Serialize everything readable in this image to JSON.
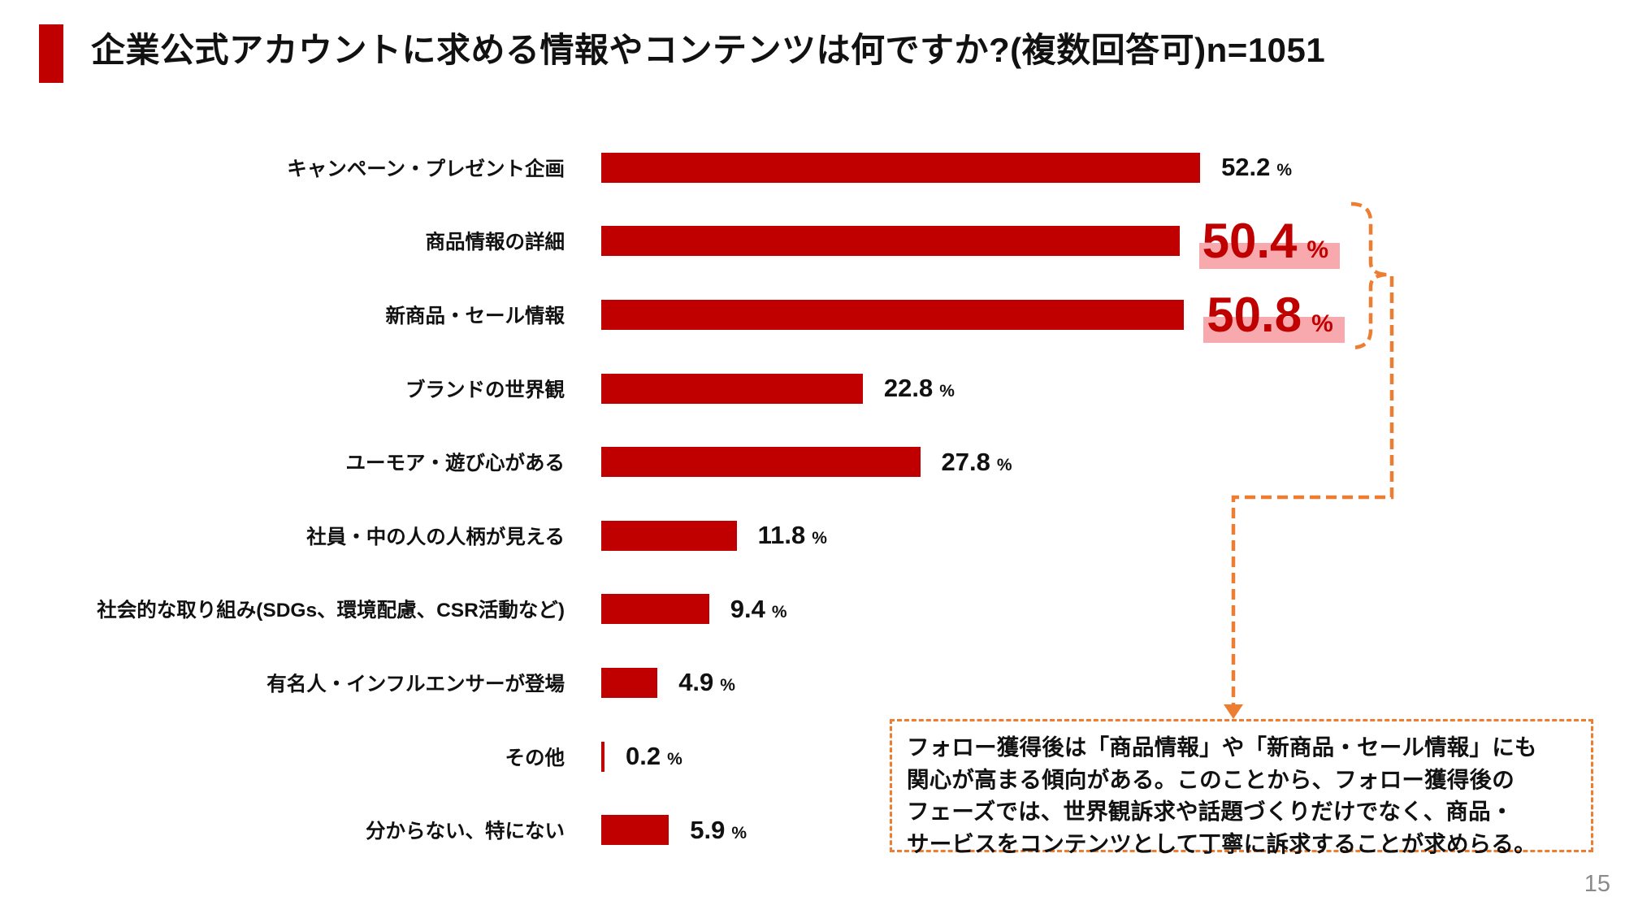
{
  "slide": {
    "title": "企業公式アカウントに求める情報やコンテンツは何ですか?(複数回答可)n=1051",
    "page_number": "15"
  },
  "colors": {
    "bar_red": "#C00000",
    "accent_red": "#C00000",
    "callout_orange": "#ED7D31",
    "highlight_pink": "#F8A9AD",
    "page_gray": "#8A8A8A"
  },
  "chart_data": {
    "type": "bar",
    "orientation": "horizontal",
    "title": "企業公式アカウントに求める情報やコンテンツは何ですか?(複数回答可)n=1051",
    "n": 1051,
    "unit": "%",
    "xlim": [
      0,
      55
    ],
    "grid": false,
    "legend": "none",
    "categories": [
      "キャンペーン・プレゼント企画",
      "商品情報の詳細",
      "新商品・セール情報",
      "ブランドの世界観",
      "ユーモア・遊び心がある",
      "社員・中の人の人柄が見える",
      "社会的な取り組み(SDGs、環境配慮、CSR活動など)",
      "有名人・インフルエンサーが登場",
      "その他",
      "分からない、特にない"
    ],
    "values": [
      52.2,
      50.4,
      50.8,
      22.8,
      27.8,
      11.8,
      9.4,
      4.9,
      0.2,
      5.9
    ],
    "highlighted_indices": [
      1,
      2
    ],
    "bar_color": "#C00000",
    "highlight_text_color": "#C00000",
    "highlight_band_color": "#F8A9AD"
  },
  "annotation": {
    "lines": [
      "フォロー獲得後は「商品情報」や「新商品・セール情報」にも",
      "関心が高まる傾向がある。このことから、フォロー獲得後の",
      "フェーズでは、世界観訴求や話題づくりだけでなく、商品・",
      "サービスをコンテンツとして丁寧に訴求することが求めらる。"
    ]
  }
}
